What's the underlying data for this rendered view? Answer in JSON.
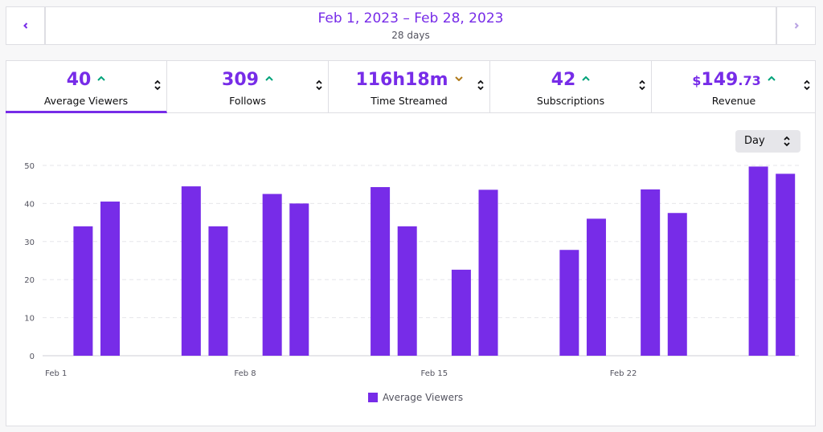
{
  "header": {
    "range": "Feb 1, 2023 – Feb 28, 2023",
    "days": "28 days"
  },
  "stats": [
    {
      "value": "40",
      "label": "Average Viewers"
    },
    {
      "value": "309",
      "label": "Follows"
    },
    {
      "value": "116h18m",
      "label": "Time Streamed"
    },
    {
      "value": "42",
      "label": "Subscriptions"
    },
    {
      "value": {
        "symbol": "$",
        "whole": "149",
        "fraction": ".73"
      },
      "label": "Revenue"
    }
  ],
  "interval": "Day",
  "chart_data": {
    "type": "bar",
    "categories": [
      "Feb 1",
      null,
      null,
      null,
      null,
      null,
      null,
      "Feb 8",
      null,
      null,
      null,
      null,
      null,
      null,
      "Feb 15",
      null,
      null,
      null,
      null,
      null,
      null,
      "Feb 22",
      null,
      null,
      null,
      null,
      null,
      null
    ],
    "series": [
      {
        "name": "Average Viewers",
        "color": "#772ce8",
        "values": [
          null,
          34,
          40.5,
          null,
          null,
          44.5,
          34,
          null,
          42.5,
          40,
          null,
          null,
          44.3,
          34,
          null,
          22.6,
          43.6,
          null,
          null,
          27.8,
          36,
          null,
          43.7,
          37.5,
          null,
          null,
          49.7,
          47.8
        ]
      }
    ],
    "ylim": [
      0,
      50
    ],
    "yticks": [
      0,
      10,
      20,
      30,
      40,
      50
    ],
    "grid": true
  }
}
